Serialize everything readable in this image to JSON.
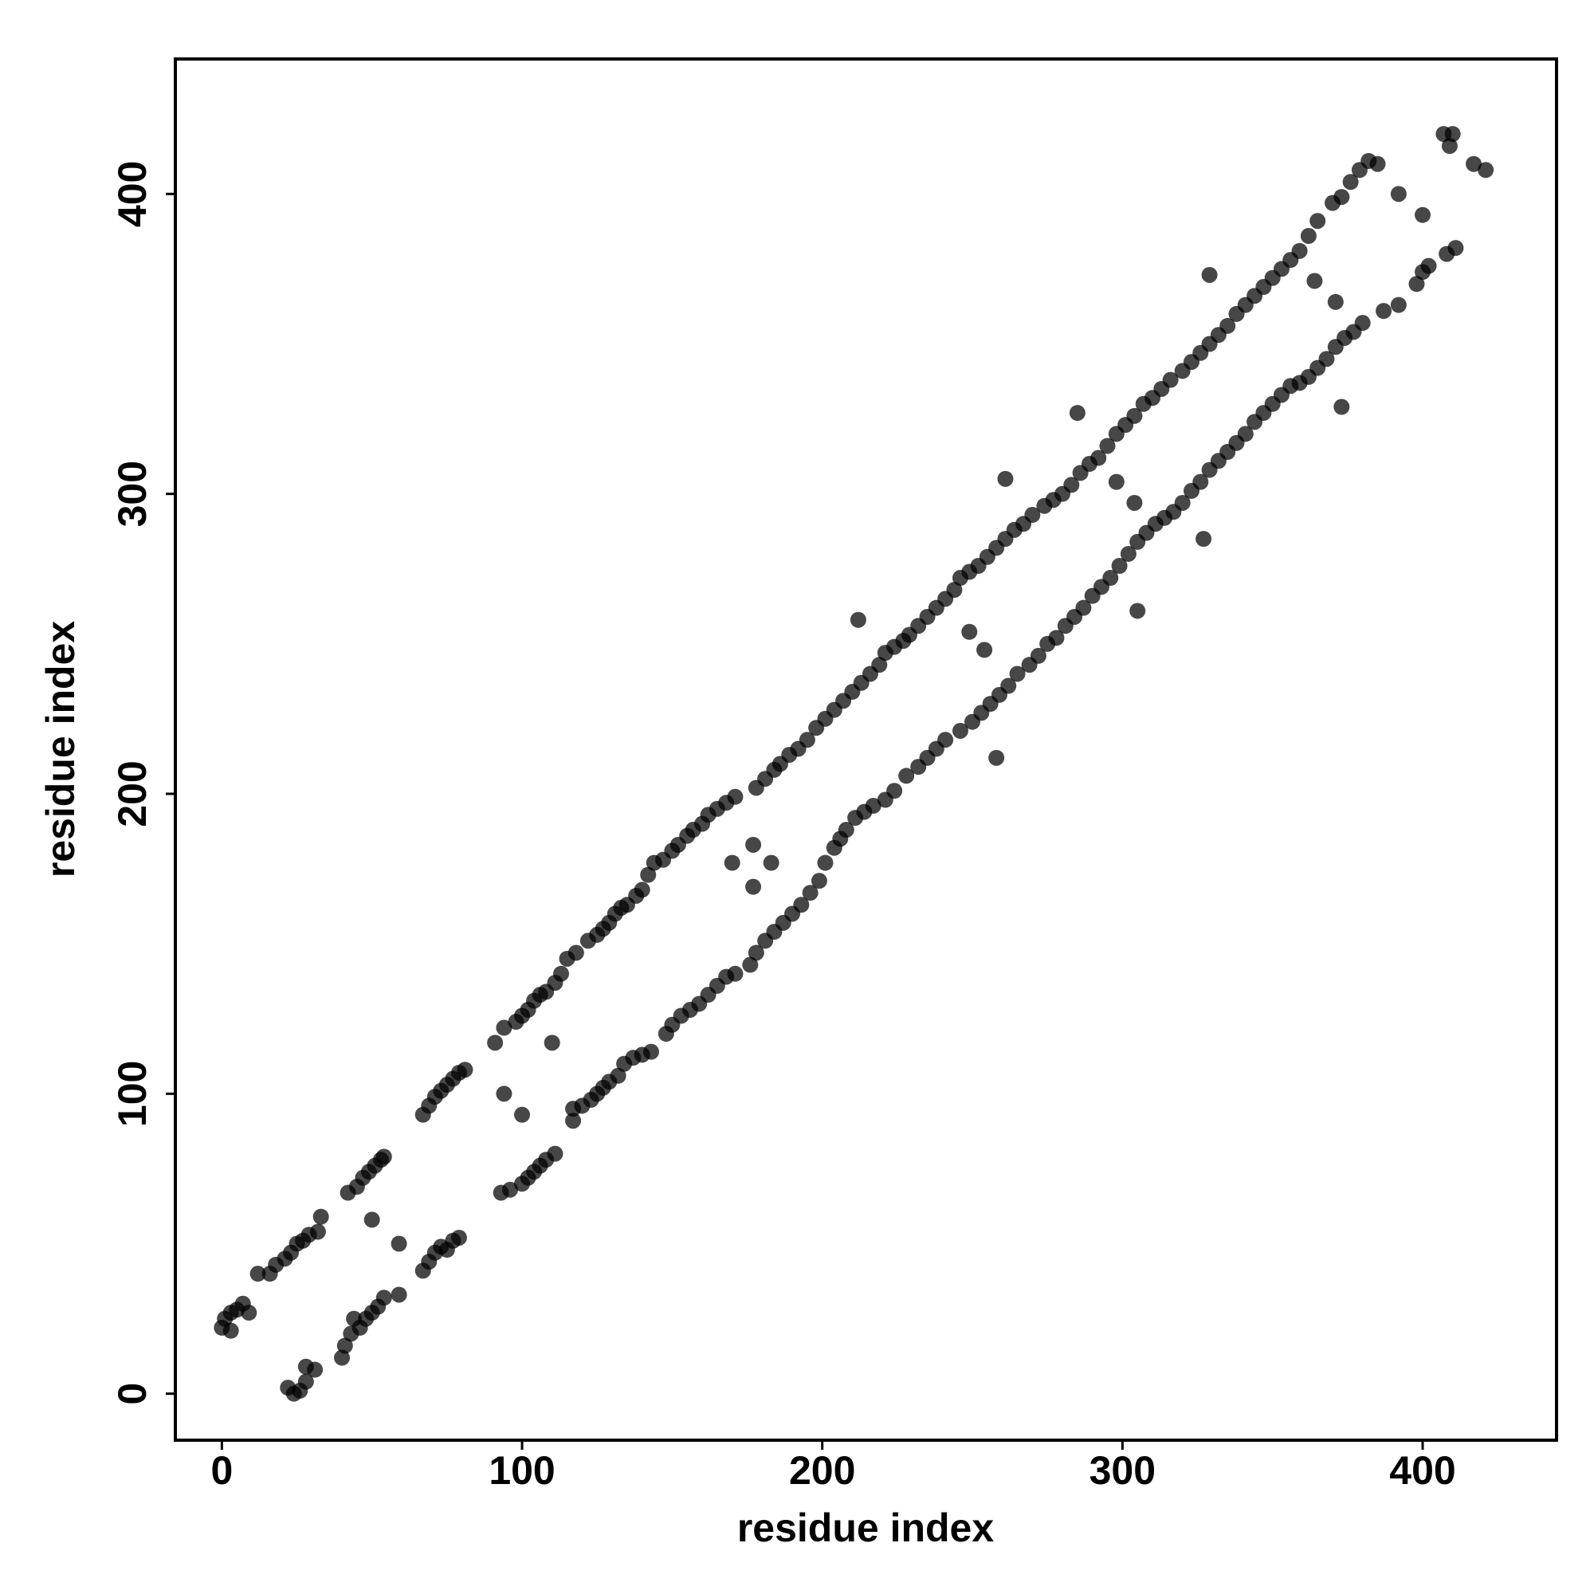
{
  "chart_data": {
    "type": "scatter",
    "x_label": "residue index",
    "y_label": "residue index",
    "xlim": [
      -15.5,
      444.6
    ],
    "ylim": [
      -15.5,
      445
    ],
    "xticks": [
      0,
      100,
      200,
      300,
      400
    ],
    "yticks": [
      0,
      100,
      200,
      300,
      400
    ],
    "color": "#000000",
    "opacity": 0.72,
    "x": [
      0,
      1,
      3,
      3,
      5,
      7,
      9,
      12,
      16,
      18,
      21,
      23,
      25,
      27,
      29,
      32,
      33,
      42,
      45,
      47,
      49,
      51,
      53,
      54,
      67,
      69,
      71,
      73,
      75,
      77,
      79,
      81,
      91,
      94,
      98,
      100,
      102,
      104,
      106,
      108,
      111,
      113,
      115,
      118,
      122,
      125,
      127,
      129,
      131,
      133,
      135,
      138,
      140,
      142,
      144,
      147,
      150,
      152,
      155,
      157,
      160,
      162,
      165,
      168,
      171,
      178,
      181,
      184,
      186,
      189,
      192,
      195,
      198,
      201,
      204,
      207,
      210,
      213,
      216,
      219,
      221,
      224,
      227,
      229,
      232,
      235,
      238,
      241,
      244,
      246,
      249,
      252,
      255,
      258,
      261,
      264,
      267,
      270,
      274,
      277,
      280,
      283,
      286,
      289,
      292,
      295,
      298,
      301,
      304,
      307,
      310,
      313,
      316,
      320,
      323,
      326,
      329,
      332,
      335,
      338,
      341,
      344,
      347,
      350,
      353,
      356,
      359,
      362,
      365,
      370,
      373,
      376,
      379,
      382,
      385,
      407,
      409,
      410,
      417,
      421,
      22,
      24,
      26,
      28,
      28,
      31,
      40,
      41,
      43,
      44,
      46,
      48,
      50,
      52,
      54,
      59,
      67,
      69,
      71,
      73,
      75,
      77,
      79,
      93,
      96,
      100,
      102,
      104,
      106,
      108,
      111,
      117,
      120,
      123,
      125,
      127,
      129,
      132,
      134,
      137,
      140,
      143,
      148,
      150,
      153,
      156,
      159,
      162,
      165,
      168,
      171,
      176,
      178,
      181,
      184,
      187,
      190,
      193,
      196,
      199,
      201,
      204,
      206,
      208,
      211,
      214,
      217,
      221,
      224,
      228,
      232,
      235,
      238,
      241,
      246,
      250,
      253,
      256,
      259,
      262,
      265,
      269,
      272,
      275,
      278,
      281,
      284,
      287,
      290,
      293,
      296,
      299,
      302,
      305,
      308,
      311,
      314,
      317,
      320,
      323,
      326,
      329,
      332,
      335,
      338,
      341,
      344,
      347,
      350,
      353,
      356,
      359,
      362,
      365,
      368,
      371,
      374,
      377,
      380,
      387,
      392,
      398,
      400,
      402,
      408,
      411,
      50,
      59,
      94,
      100,
      110,
      117,
      170,
      177,
      177,
      183,
      212,
      258,
      249,
      254,
      261,
      305,
      285,
      327,
      298,
      304,
      329,
      373,
      364,
      371,
      392,
      400
    ],
    "values": [
      22,
      25,
      21,
      27,
      28,
      30,
      27,
      40,
      40,
      43,
      45,
      47,
      50,
      51,
      53,
      54,
      59,
      67,
      69,
      72,
      74,
      76,
      78,
      79,
      93,
      96,
      99,
      101,
      103,
      105,
      107,
      108,
      117,
      122,
      124,
      126,
      128,
      131,
      133,
      134,
      137,
      140,
      145,
      147,
      151,
      153,
      155,
      157,
      160,
      162,
      163,
      166,
      168,
      173,
      177,
      178,
      181,
      183,
      186,
      188,
      190,
      193,
      195,
      197,
      199,
      202,
      205,
      208,
      210,
      213,
      215,
      218,
      222,
      225,
      228,
      231,
      234,
      237,
      240,
      243,
      247,
      249,
      251,
      253,
      256,
      259,
      262,
      265,
      268,
      272,
      274,
      276,
      279,
      282,
      285,
      288,
      290,
      293,
      296,
      298,
      300,
      303,
      307,
      310,
      312,
      316,
      320,
      323,
      326,
      330,
      332,
      335,
      338,
      341,
      344,
      347,
      350,
      353,
      356,
      360,
      363,
      366,
      369,
      372,
      375,
      378,
      381,
      386,
      391,
      397,
      399,
      404,
      408,
      411,
      410,
      420,
      416,
      420,
      410,
      408,
      2,
      0,
      1,
      4,
      9,
      8,
      12,
      16,
      20,
      25,
      22,
      25,
      27,
      29,
      32,
      33,
      41,
      44,
      47,
      49,
      48,
      51,
      52,
      67,
      68,
      70,
      72,
      74,
      76,
      78,
      80,
      95,
      96,
      98,
      100,
      102,
      104,
      106,
      110,
      112,
      113,
      114,
      120,
      123,
      126,
      128,
      130,
      133,
      136,
      139,
      140,
      143,
      147,
      151,
      154,
      157,
      160,
      163,
      167,
      171,
      177,
      182,
      185,
      188,
      192,
      194,
      196,
      198,
      201,
      206,
      209,
      212,
      215,
      218,
      221,
      224,
      227,
      230,
      233,
      236,
      240,
      243,
      246,
      250,
      252,
      256,
      259,
      262,
      266,
      269,
      272,
      276,
      280,
      284,
      287,
      290,
      292,
      294,
      297,
      301,
      304,
      308,
      311,
      314,
      317,
      320,
      324,
      327,
      330,
      333,
      336,
      337,
      339,
      342,
      345,
      349,
      352,
      354,
      357,
      361,
      363,
      370,
      374,
      376,
      380,
      382,
      58,
      50,
      100,
      93,
      117,
      91,
      177,
      169,
      183,
      177,
      258,
      212,
      254,
      248,
      305,
      261,
      327,
      285,
      304,
      297,
      373,
      329,
      371,
      364,
      400,
      393
    ]
  }
}
